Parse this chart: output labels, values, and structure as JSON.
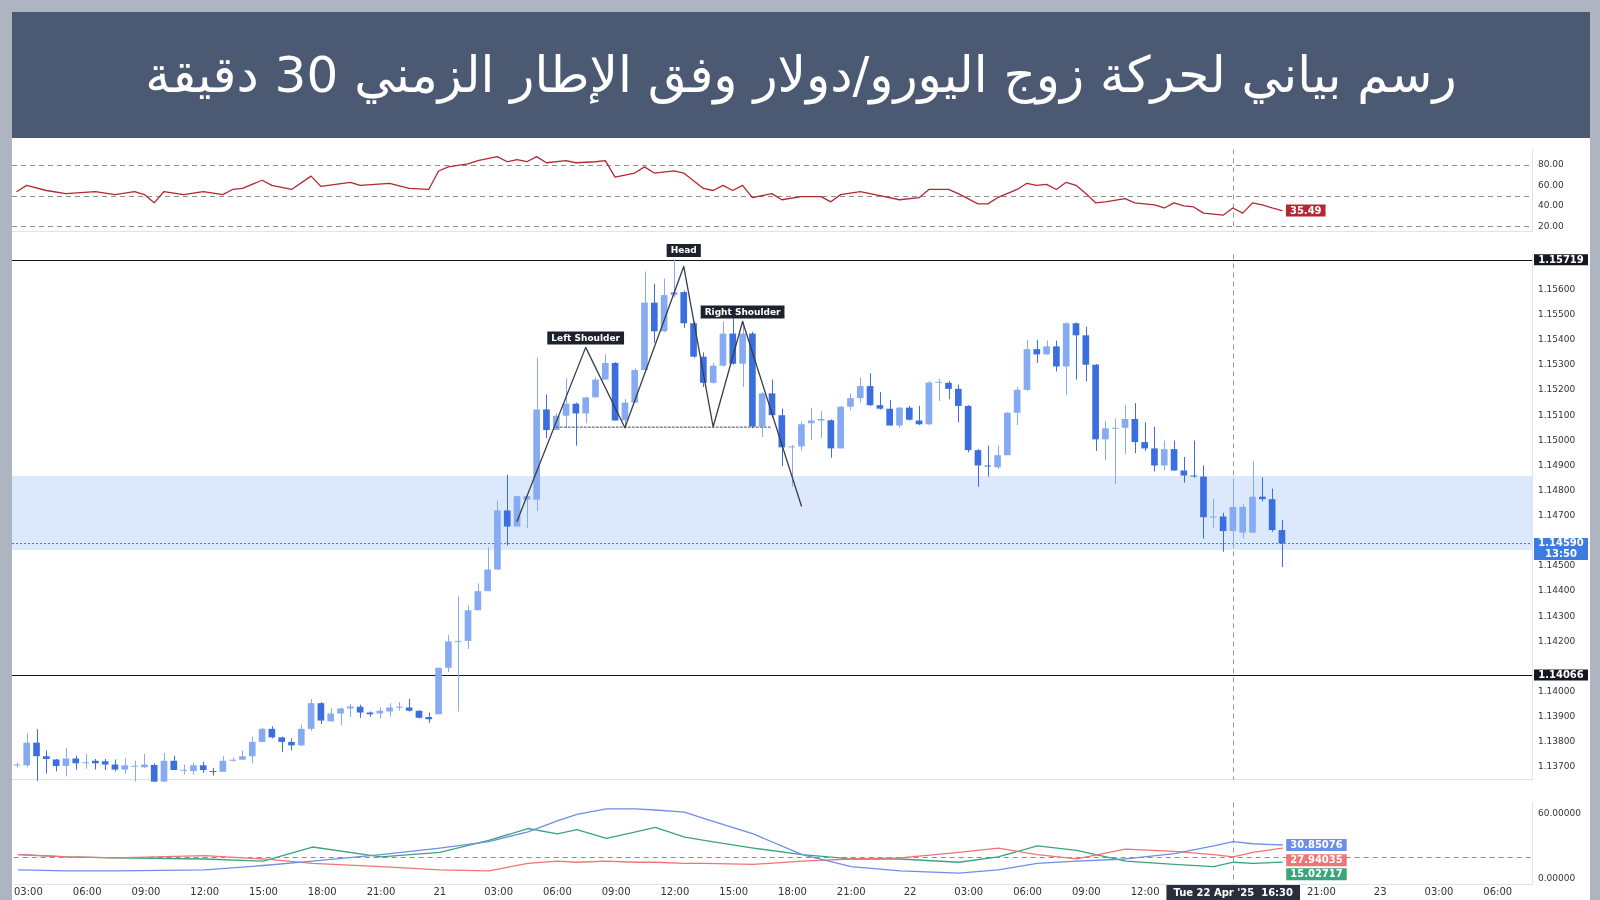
{
  "chart_data": [
    {
      "type": "line",
      "title": "رسم بياني لحركة زوج اليورو/دولار وفق الإطار الزمني 30 دقيقة",
      "color": "#b22833",
      "x": [
        "2025-04-20T02:30",
        "2025-04-20T03:00",
        "2025-04-20T04:00",
        "2025-04-20T05:00",
        "2025-04-20T06:30",
        "2025-04-20T07:30",
        "2025-04-20T08:30",
        "2025-04-20T09:00",
        "2025-04-20T09:30",
        "2025-04-20T10:00",
        "2025-04-20T11:00",
        "2025-04-20T12:00",
        "2025-04-20T13:00",
        "2025-04-20T13:30",
        "2025-04-20T14:00",
        "2025-04-20T15:00",
        "2025-04-20T15:30",
        "2025-04-20T16:30",
        "2025-04-20T17:30",
        "2025-04-20T18:00",
        "2025-04-20T19:30",
        "2025-04-20T20:00",
        "2025-04-20T21:30",
        "2025-04-20T22:30",
        "2025-04-20T23:30",
        "2025-04-21T00:00",
        "2025-04-21T00:30",
        "2025-04-21T01:30",
        "2025-04-21T02:00",
        "2025-04-21T03:00",
        "2025-04-21T03:30",
        "2025-04-21T04:00",
        "2025-04-21T04:30",
        "2025-04-21T05:00",
        "2025-04-21T05:30",
        "2025-04-21T06:30",
        "2025-04-21T07:00",
        "2025-04-21T08:00",
        "2025-04-21T08:30",
        "2025-04-21T09:00",
        "2025-04-21T10:00",
        "2025-04-21T10:30",
        "2025-04-21T11:00",
        "2025-04-21T12:00",
        "2025-04-21T12:30",
        "2025-04-21T13:30",
        "2025-04-21T14:00",
        "2025-04-21T14:30",
        "2025-04-21T15:00",
        "2025-04-21T15:30",
        "2025-04-21T16:00",
        "2025-04-21T17:00",
        "2025-04-21T17:30",
        "2025-04-21T18:30",
        "2025-04-21T19:30",
        "2025-04-21T20:00",
        "2025-04-21T20:30",
        "2025-04-21T21:30",
        "2025-04-21T22:30",
        "2025-04-21T23:30",
        "2025-04-22T00:30",
        "2025-04-22T01:00",
        "2025-04-22T02:00",
        "2025-04-22T02:30",
        "2025-04-22T03:30",
        "2025-04-22T04:00",
        "2025-04-22T04:30",
        "2025-04-22T05:30",
        "2025-04-22T06:00",
        "2025-04-22T06:30",
        "2025-04-22T07:00",
        "2025-04-22T07:30",
        "2025-04-22T08:00",
        "2025-04-22T08:30",
        "2025-04-22T09:00",
        "2025-04-22T09:30",
        "2025-04-22T10:00",
        "2025-04-22T11:00",
        "2025-04-22T11:30",
        "2025-04-22T12:30",
        "2025-04-22T13:00",
        "2025-04-22T13:30",
        "2025-04-22T14:00",
        "2025-04-22T14:30",
        "2025-04-22T15:00",
        "2025-04-22T16:00",
        "2025-04-22T16:30",
        "2025-04-22T17:00",
        "2025-04-22T17:30",
        "2025-04-22T18:00",
        "2025-04-22T18:30",
        "2025-04-22T19:00"
      ],
      "values": [
        54,
        60,
        55,
        52,
        54,
        51,
        54,
        51,
        43,
        54,
        51,
        54,
        51,
        56,
        57,
        65,
        60,
        56,
        69,
        59,
        63,
        60,
        62,
        57,
        56,
        74,
        78,
        81,
        84,
        88,
        83,
        85,
        83,
        88,
        82,
        84,
        82,
        83,
        84,
        68,
        72,
        78,
        72,
        74,
        72,
        57,
        55,
        60,
        55,
        60,
        48,
        52,
        46,
        49,
        49,
        44,
        51,
        54,
        50,
        46,
        48,
        56,
        56,
        52,
        42,
        42,
        48,
        56,
        62,
        60,
        61,
        56,
        63,
        60,
        52,
        43,
        44,
        47,
        43,
        41,
        38,
        43,
        40,
        39,
        33,
        31,
        38,
        33,
        43,
        41,
        38,
        35.49
      ],
      "value_labels": [
        null,
        null,
        null,
        null,
        null,
        null,
        null,
        null,
        null,
        null,
        null,
        null,
        null,
        null,
        null,
        null,
        null,
        null,
        null,
        null,
        null,
        null,
        null,
        null,
        null,
        null,
        null,
        null,
        null,
        null,
        null,
        null,
        null,
        null,
        null,
        null,
        null,
        null,
        null,
        null,
        null,
        null,
        null,
        null,
        null,
        null,
        null,
        null,
        null,
        null,
        null,
        null,
        null,
        null,
        null,
        null,
        null,
        null,
        null,
        null,
        null,
        null,
        null,
        null,
        null,
        null,
        null,
        null,
        null,
        null,
        null,
        null,
        null,
        null,
        null,
        null,
        null,
        null,
        null,
        null,
        null,
        null,
        null,
        null,
        null,
        null,
        null,
        null,
        null,
        null,
        null,
        "35.49"
      ],
      "xlim": [
        "2025-04-20T02:15",
        "2025-04-23T07:45"
      ],
      "ylim": [
        15,
        95
      ],
      "yticks": [
        {
          "value": 20,
          "label": "20.00"
        },
        {
          "value": 40,
          "label": "40.00"
        },
        {
          "value": 60,
          "label": "60.00"
        },
        {
          "value": 80,
          "label": "80.00"
        }
      ],
      "tick_labels": "y",
      "ref_lines": [
        {
          "axis": "y",
          "value": 80,
          "color": "#8a8d96",
          "line_style": "dashed"
        },
        {
          "axis": "y",
          "value": 50,
          "color": "#8a8d96",
          "line_style": "dashed"
        },
        {
          "axis": "y",
          "value": 20,
          "color": "#8a8d96",
          "line_style": "dashed"
        },
        {
          "axis": "x",
          "value": "2025-04-22T16:30",
          "color": "#9598a1",
          "line_style": "dashed"
        }
      ]
    },
    {
      "type": "candlestick",
      "x": [
        "2025-04-20T02:30",
        "2025-04-20T03:00",
        "2025-04-20T03:30",
        "2025-04-20T04:00",
        "2025-04-20T04:30",
        "2025-04-20T05:00",
        "2025-04-20T05:30",
        "2025-04-20T06:00",
        "2025-04-20T06:30",
        "2025-04-20T07:00",
        "2025-04-20T07:30",
        "2025-04-20T08:00",
        "2025-04-20T08:30",
        "2025-04-20T09:00",
        "2025-04-20T09:30",
        "2025-04-20T10:00",
        "2025-04-20T10:30",
        "2025-04-20T11:00",
        "2025-04-20T11:30",
        "2025-04-20T12:00",
        "2025-04-20T12:30",
        "2025-04-20T13:00",
        "2025-04-20T13:30",
        "2025-04-20T14:00",
        "2025-04-20T14:30",
        "2025-04-20T15:00",
        "2025-04-20T15:30",
        "2025-04-20T16:00",
        "2025-04-20T16:30",
        "2025-04-20T17:00",
        "2025-04-20T17:30",
        "2025-04-20T18:00",
        "2025-04-20T18:30",
        "2025-04-20T19:00",
        "2025-04-20T19:30",
        "2025-04-20T20:00",
        "2025-04-20T20:30",
        "2025-04-20T21:00",
        "2025-04-20T21:30",
        "2025-04-20T22:00",
        "2025-04-20T22:30",
        "2025-04-20T23:00",
        "2025-04-20T23:30",
        "2025-04-21T00:00",
        "2025-04-21T00:30",
        "2025-04-21T01:00",
        "2025-04-21T01:30",
        "2025-04-21T02:00",
        "2025-04-21T02:30",
        "2025-04-21T03:00",
        "2025-04-21T03:30",
        "2025-04-21T04:00",
        "2025-04-21T04:30",
        "2025-04-21T05:00",
        "2025-04-21T05:30",
        "2025-04-21T06:00",
        "2025-04-21T06:30",
        "2025-04-21T07:00",
        "2025-04-21T07:30",
        "2025-04-21T08:00",
        "2025-04-21T08:30",
        "2025-04-21T09:00",
        "2025-04-21T09:30",
        "2025-04-21T10:00",
        "2025-04-21T10:30",
        "2025-04-21T11:00",
        "2025-04-21T11:30",
        "2025-04-21T12:00",
        "2025-04-21T12:30",
        "2025-04-21T13:00",
        "2025-04-21T13:30",
        "2025-04-21T14:00",
        "2025-04-21T14:30",
        "2025-04-21T15:00",
        "2025-04-21T15:30",
        "2025-04-21T16:00",
        "2025-04-21T16:30",
        "2025-04-21T17:00",
        "2025-04-21T17:30",
        "2025-04-21T18:00",
        "2025-04-21T18:30",
        "2025-04-21T19:00",
        "2025-04-21T19:30",
        "2025-04-21T20:00",
        "2025-04-21T20:30",
        "2025-04-21T21:00",
        "2025-04-21T21:30",
        "2025-04-21T22:00",
        "2025-04-21T22:30",
        "2025-04-21T23:00",
        "2025-04-21T23:30",
        "2025-04-22T00:00",
        "2025-04-22T00:30",
        "2025-04-22T01:00",
        "2025-04-22T01:30",
        "2025-04-22T02:00",
        "2025-04-22T02:30",
        "2025-04-22T03:00",
        "2025-04-22T03:30",
        "2025-04-22T04:00",
        "2025-04-22T04:30",
        "2025-04-22T05:00",
        "2025-04-22T05:30",
        "2025-04-22T06:00",
        "2025-04-22T06:30",
        "2025-04-22T07:00",
        "2025-04-22T07:30",
        "2025-04-22T08:00",
        "2025-04-22T08:30",
        "2025-04-22T09:00",
        "2025-04-22T09:30",
        "2025-04-22T10:00",
        "2025-04-22T10:30",
        "2025-04-22T11:00",
        "2025-04-22T11:30",
        "2025-04-22T12:00",
        "2025-04-22T12:30",
        "2025-04-22T13:00",
        "2025-04-22T13:30",
        "2025-04-22T14:00",
        "2025-04-22T14:30",
        "2025-04-22T15:00",
        "2025-04-22T15:30",
        "2025-04-22T16:00",
        "2025-04-22T16:30",
        "2025-04-22T17:00",
        "2025-04-22T17:30",
        "2025-04-22T18:00",
        "2025-04-22T18:30",
        "2025-04-22T19:00"
      ],
      "ohlc": [
        [
          1.13708,
          1.13718,
          1.13698,
          1.1371
        ],
        [
          1.13707,
          1.13834,
          1.137,
          1.13797
        ],
        [
          1.13797,
          1.13851,
          1.13645,
          1.13743
        ],
        [
          1.13743,
          1.13766,
          1.13674,
          1.13732
        ],
        [
          1.1373,
          1.13732,
          1.13683,
          1.13704
        ],
        [
          1.13704,
          1.13777,
          1.13663,
          1.13734
        ],
        [
          1.13734,
          1.13745,
          1.1369,
          1.13715
        ],
        [
          1.13718,
          1.13752,
          1.13693,
          1.13719
        ],
        [
          1.13725,
          1.13732,
          1.1369,
          1.13715
        ],
        [
          1.13723,
          1.13732,
          1.13688,
          1.1371
        ],
        [
          1.1371,
          1.1373,
          1.13683,
          1.1369
        ],
        [
          1.1369,
          1.13735,
          1.13674,
          1.13707
        ],
        [
          1.13704,
          1.13725,
          1.13642,
          1.13705
        ],
        [
          1.13699,
          1.13752,
          1.13696,
          1.1371
        ],
        [
          1.13708,
          1.13714,
          1.13642,
          1.13642
        ],
        [
          1.13642,
          1.13756,
          1.13642,
          1.13725
        ],
        [
          1.13725,
          1.13745,
          1.13688,
          1.13688
        ],
        [
          1.13688,
          1.1371,
          1.1367,
          1.13689
        ],
        [
          1.13684,
          1.13718,
          1.1367,
          1.13707
        ],
        [
          1.13707,
          1.13721,
          1.13677,
          1.13688
        ],
        [
          1.13684,
          1.13697,
          1.13666,
          1.13683
        ],
        [
          1.13681,
          1.13743,
          1.13681,
          1.13725
        ],
        [
          1.13725,
          1.13738,
          1.13722,
          1.13729
        ],
        [
          1.13729,
          1.13766,
          1.13729,
          1.13743
        ],
        [
          1.13743,
          1.13821,
          1.13715,
          1.138
        ],
        [
          1.138,
          1.13855,
          1.138,
          1.13852
        ],
        [
          1.13852,
          1.13862,
          1.13814,
          1.13818
        ],
        [
          1.13818,
          1.13821,
          1.13759,
          1.138
        ],
        [
          1.138,
          1.13814,
          1.13766,
          1.13786
        ],
        [
          1.13786,
          1.13869,
          1.13783,
          1.13852
        ],
        [
          1.13852,
          1.13971,
          1.13844,
          1.13954
        ],
        [
          1.13954,
          1.13958,
          1.13871,
          1.13885
        ],
        [
          1.13882,
          1.13933,
          1.1388,
          1.13913
        ],
        [
          1.13913,
          1.13937,
          1.13866,
          1.13933
        ],
        [
          1.13933,
          1.13951,
          1.13899,
          1.13941
        ],
        [
          1.1394,
          1.13948,
          1.13896,
          1.13917
        ],
        [
          1.13917,
          1.13921,
          1.139,
          1.1391
        ],
        [
          1.13913,
          1.13937,
          1.13893,
          1.13924
        ],
        [
          1.13921,
          1.13954,
          1.139,
          1.13937
        ],
        [
          1.13938,
          1.13958,
          1.13924,
          1.1394
        ],
        [
          1.13937,
          1.13971,
          1.13921,
          1.13924
        ],
        [
          1.13924,
          1.13926,
          1.13893,
          1.13896
        ],
        [
          1.13899,
          1.13917,
          1.13875,
          1.1389
        ],
        [
          1.1391,
          1.14095,
          1.1391,
          1.14095
        ],
        [
          1.14095,
          1.14225,
          1.14077,
          1.142
        ],
        [
          1.142,
          1.14379,
          1.13921,
          1.14202
        ],
        [
          1.14202,
          1.14342,
          1.1417,
          1.14324
        ],
        [
          1.14324,
          1.14431,
          1.14324,
          1.144
        ],
        [
          1.144,
          1.14575,
          1.144,
          1.14486
        ],
        [
          1.14486,
          1.1476,
          1.14486,
          1.14721
        ],
        [
          1.14721,
          1.14863,
          1.14582,
          1.14657
        ],
        [
          1.14657,
          1.1478,
          1.14657,
          1.14778
        ],
        [
          1.14764,
          1.14784,
          1.1465,
          1.14778
        ],
        [
          1.14764,
          1.15329,
          1.14719,
          1.15123
        ],
        [
          1.15123,
          1.15182,
          1.15009,
          1.15041
        ],
        [
          1.15041,
          1.15109,
          1.15041,
          1.15098
        ],
        [
          1.15098,
          1.15246,
          1.15048,
          1.15146
        ],
        [
          1.15146,
          1.1515,
          1.14979,
          1.15107
        ],
        [
          1.15107,
          1.15174,
          1.15068,
          1.15171
        ],
        [
          1.15171,
          1.1525,
          1.15171,
          1.15242
        ],
        [
          1.15242,
          1.15342,
          1.15242,
          1.15308
        ],
        [
          1.15308,
          1.15311,
          1.15079,
          1.15079
        ],
        [
          1.15079,
          1.15164,
          1.15061,
          1.1515
        ],
        [
          1.1515,
          1.15287,
          1.1515,
          1.1528
        ],
        [
          1.1528,
          1.15672,
          1.1528,
          1.15548
        ],
        [
          1.15548,
          1.15623,
          1.15388,
          1.15434
        ],
        [
          1.15434,
          1.15644,
          1.15431,
          1.15578
        ],
        [
          1.15578,
          1.15719,
          1.15569,
          1.1559
        ],
        [
          1.1559,
          1.15596,
          1.15448,
          1.15466
        ],
        [
          1.15466,
          1.15473,
          1.15329,
          1.15333
        ],
        [
          1.15333,
          1.1535,
          1.15212,
          1.15229
        ],
        [
          1.15229,
          1.15308,
          1.15226,
          1.15297
        ],
        [
          1.15297,
          1.15473,
          1.15294,
          1.15425
        ],
        [
          1.15425,
          1.15486,
          1.15301,
          1.15305
        ],
        [
          1.15305,
          1.15473,
          1.15212,
          1.15425
        ],
        [
          1.15425,
          1.15432,
          1.15048,
          1.15055
        ],
        [
          1.15055,
          1.15192,
          1.15013,
          1.15187
        ],
        [
          1.15187,
          1.15242,
          1.15089,
          1.151
        ],
        [
          1.151,
          1.15127,
          1.14897,
          1.14972
        ],
        [
          1.14972,
          1.14982,
          1.14815,
          1.14976
        ],
        [
          1.14976,
          1.15075,
          1.14958,
          1.15064
        ],
        [
          1.15068,
          1.1513,
          1.15,
          1.15079
        ],
        [
          1.15079,
          1.15116,
          1.15009,
          1.15085
        ],
        [
          1.1508,
          1.15083,
          1.14931,
          1.14968
        ],
        [
          1.14968,
          1.15137,
          1.14968,
          1.15134
        ],
        [
          1.15134,
          1.15187,
          1.15119,
          1.15168
        ],
        [
          1.15168,
          1.1525,
          1.1515,
          1.15216
        ],
        [
          1.15216,
          1.15267,
          1.15137,
          1.1514
        ],
        [
          1.1514,
          1.15192,
          1.15122,
          1.15126
        ],
        [
          1.15126,
          1.1516,
          1.15059,
          1.15059
        ],
        [
          1.15059,
          1.15133,
          1.1505,
          1.1513
        ],
        [
          1.1513,
          1.15137,
          1.15079,
          1.15082
        ],
        [
          1.15079,
          1.15137,
          1.15061,
          1.15064
        ],
        [
          1.15064,
          1.15236,
          1.15061,
          1.1523
        ],
        [
          1.1523,
          1.15246,
          1.15157,
          1.15233
        ],
        [
          1.15229,
          1.15236,
          1.15164,
          1.15205
        ],
        [
          1.15205,
          1.15222,
          1.15071,
          1.15137
        ],
        [
          1.15137,
          1.1514,
          1.14952,
          1.14961
        ],
        [
          1.14961,
          1.14965,
          1.14815,
          1.149
        ],
        [
          1.149,
          1.14979,
          1.14856,
          1.14897
        ],
        [
          1.14893,
          1.14979,
          1.14886,
          1.14941
        ],
        [
          1.14941,
          1.15112,
          1.14941,
          1.1511
        ],
        [
          1.1511,
          1.15212,
          1.15061,
          1.15201
        ],
        [
          1.15201,
          1.154,
          1.15196,
          1.15363
        ],
        [
          1.15363,
          1.154,
          1.15308,
          1.15342
        ],
        [
          1.15342,
          1.15397,
          1.15342,
          1.15374
        ],
        [
          1.15374,
          1.15397,
          1.15274,
          1.15294
        ],
        [
          1.15294,
          1.15469,
          1.15182,
          1.15466
        ],
        [
          1.15466,
          1.15469,
          1.15242,
          1.15418
        ],
        [
          1.15418,
          1.15452,
          1.15235,
          1.15301
        ],
        [
          1.15301,
          1.15304,
          1.14958,
          1.15004
        ],
        [
          1.15004,
          1.15078,
          1.14922,
          1.15048
        ],
        [
          1.15048,
          1.15086,
          1.14826,
          1.1505
        ],
        [
          1.1505,
          1.15141,
          1.14945,
          1.15085
        ],
        [
          1.15085,
          1.15148,
          1.14949,
          1.14993
        ],
        [
          1.14993,
          1.15072,
          1.14958,
          1.14968
        ],
        [
          1.14968,
          1.15054,
          1.14876,
          1.149
        ],
        [
          1.149,
          1.14999,
          1.1488,
          1.14965
        ],
        [
          1.14965,
          1.14999,
          1.1488,
          1.1488
        ],
        [
          1.1488,
          1.14934,
          1.14832,
          1.1486
        ],
        [
          1.1486,
          1.14999,
          1.14851,
          1.14858
        ],
        [
          1.14856,
          1.149,
          1.14609,
          1.14694
        ],
        [
          1.14694,
          1.14766,
          1.14653,
          1.14697
        ],
        [
          1.14697,
          1.14712,
          1.14557,
          1.14639
        ],
        [
          1.14639,
          1.14849,
          1.14571,
          1.14735
        ],
        [
          1.14633,
          1.14746,
          1.1461,
          1.14735
        ],
        [
          1.14633,
          1.14917,
          1.14633,
          1.14776
        ],
        [
          1.14776,
          1.14853,
          1.14757,
          1.14766
        ],
        [
          1.14766,
          1.14808,
          1.14636,
          1.14643
        ],
        [
          1.14643,
          1.14684,
          1.14496,
          1.1459
        ]
      ],
      "colors": [
        "#86abf2",
        "#86abf2",
        "#3b6fe0",
        "#3b6fe0",
        "#3b6fe0",
        "#86abf2",
        "#3b6fe0",
        "#86abf2",
        "#3b6fe0",
        "#3b6fe0",
        "#3b6fe0",
        "#86abf2",
        "#86abf2",
        "#86abf2",
        "#3b6fe0",
        "#86abf2",
        "#3b6fe0",
        "#86abf2",
        "#86abf2",
        "#3b6fe0",
        "#3b6fe0",
        "#86abf2",
        "#86abf2",
        "#86abf2",
        "#86abf2",
        "#86abf2",
        "#3b6fe0",
        "#3b6fe0",
        "#3b6fe0",
        "#86abf2",
        "#86abf2",
        "#3b6fe0",
        "#86abf2",
        "#86abf2",
        "#86abf2",
        "#3b6fe0",
        "#3b6fe0",
        "#86abf2",
        "#86abf2",
        "#86abf2",
        "#3b6fe0",
        "#3b6fe0",
        "#3b6fe0",
        "#86abf2",
        "#86abf2",
        "#86abf2",
        "#86abf2",
        "#86abf2",
        "#86abf2",
        "#86abf2",
        "#3b6fe0",
        "#86abf2",
        "#86abf2",
        "#86abf2",
        "#3b6fe0",
        "#86abf2",
        "#86abf2",
        "#3b6fe0",
        "#86abf2",
        "#86abf2",
        "#86abf2",
        "#3b6fe0",
        "#86abf2",
        "#86abf2",
        "#86abf2",
        "#3b6fe0",
        "#86abf2",
        "#86abf2",
        "#3b6fe0",
        "#3b6fe0",
        "#3b6fe0",
        "#86abf2",
        "#86abf2",
        "#3b6fe0",
        "#86abf2",
        "#3b6fe0",
        "#86abf2",
        "#3b6fe0",
        "#3b6fe0",
        "#86abf2",
        "#86abf2",
        "#86abf2",
        "#86abf2",
        "#3b6fe0",
        "#86abf2",
        "#86abf2",
        "#86abf2",
        "#3b6fe0",
        "#3b6fe0",
        "#3b6fe0",
        "#86abf2",
        "#3b6fe0",
        "#3b6fe0",
        "#86abf2",
        "#86abf2",
        "#3b6fe0",
        "#3b6fe0",
        "#3b6fe0",
        "#3b6fe0",
        "#3b6fe0",
        "#86abf2",
        "#86abf2",
        "#86abf2",
        "#86abf2",
        "#3b6fe0",
        "#86abf2",
        "#3b6fe0",
        "#86abf2",
        "#3b6fe0",
        "#3b6fe0",
        "#3b6fe0",
        "#86abf2",
        "#86abf2",
        "#86abf2",
        "#3b6fe0",
        "#3b6fe0",
        "#3b6fe0",
        "#86abf2",
        "#3b6fe0",
        "#3b6fe0",
        "#3b6fe0",
        "#3b6fe0",
        "#86abf2",
        "#3b6fe0",
        "#86abf2",
        "#86abf2",
        "#86abf2",
        "#3b6fe0",
        "#3b6fe0",
        "#3b6fe0"
      ],
      "series": [
        {
          "type": "line",
          "color": "#3a3d45",
          "x": [
            "2025-04-21T04:00",
            "2025-04-21T07:30",
            "2025-04-21T09:30",
            "2025-04-21T12:30",
            "2025-04-21T14:00",
            "2025-04-21T15:30",
            "2025-04-21T18:30"
          ],
          "values": [
            1.14678,
            1.1537,
            1.1505,
            1.15692,
            1.15054,
            1.15473,
            1.14739
          ]
        },
        {
          "type": "line",
          "color": "#6b6f78",
          "line_style": "dotted",
          "x": [
            "2025-04-21T06:00",
            "2025-04-21T17:00"
          ],
          "values": [
            1.15053,
            1.15053
          ]
        }
      ],
      "xlim": [
        "2025-04-20T02:15",
        "2025-04-23T07:45"
      ],
      "ylim": [
        1.1365,
        1.1574
      ],
      "yticks": [
        {
          "value": 1.137,
          "label": "1.13700"
        },
        {
          "value": 1.138,
          "label": "1.13800"
        },
        {
          "value": 1.139,
          "label": "1.13900"
        },
        {
          "value": 1.14,
          "label": "1.14000"
        },
        {
          "value": 1.142,
          "label": "1.14200"
        },
        {
          "value": 1.143,
          "label": "1.14300"
        },
        {
          "value": 1.144,
          "label": "1.14400"
        },
        {
          "value": 1.145,
          "label": "1.14500"
        },
        {
          "value": 1.147,
          "label": "1.14700"
        },
        {
          "value": 1.148,
          "label": "1.14800"
        },
        {
          "value": 1.149,
          "label": "1.14900"
        },
        {
          "value": 1.15,
          "label": "1.15000"
        },
        {
          "value": 1.151,
          "label": "1.15100"
        },
        {
          "value": 1.152,
          "label": "1.15200"
        },
        {
          "value": 1.153,
          "label": "1.15300"
        },
        {
          "value": 1.154,
          "label": "1.15400"
        },
        {
          "value": 1.155,
          "label": "1.15500"
        },
        {
          "value": 1.156,
          "label": "1.15600"
        }
      ],
      "tick_labels": "y",
      "bands": [
        {
          "axis": "y",
          "from": 1.14564,
          "to": 1.14858,
          "color": "#dce8fb"
        }
      ],
      "ref_lines": [
        {
          "axis": "y",
          "value": 1.15719,
          "label": "1.15719",
          "color": "#131722"
        },
        {
          "axis": "y",
          "value": 1.14066,
          "label": "1.14066",
          "color": "#131722"
        },
        {
          "axis": "y",
          "value": 1.1459,
          "label": "1.14590\n13:50",
          "color": "#3d7be0",
          "line_style": "dotted"
        },
        {
          "axis": "x",
          "value": "2025-04-22T16:30",
          "color": "#9598a1",
          "line_style": "dashed"
        }
      ],
      "annotations": [
        {
          "text": "Left Shoulder",
          "x": "2025-04-21T07:30",
          "y": 1.1537
        },
        {
          "text": "Head",
          "x": "2025-04-21T12:30",
          "y": 1.15719
        },
        {
          "text": "Right Shoulder",
          "x": "2025-04-21T15:30",
          "y": 1.15473
        }
      ]
    },
    {
      "type": "line",
      "x": [
        "2025-04-20T02:30",
        "2025-04-20T05:00",
        "2025-04-20T07:30",
        "2025-04-20T12:00",
        "2025-04-20T15:00",
        "2025-04-20T17:30",
        "2025-04-20T21:00",
        "2025-04-21T00:00",
        "2025-04-21T02:30",
        "2025-04-21T04:30",
        "2025-04-21T06:00",
        "2025-04-21T07:00",
        "2025-04-21T08:30",
        "2025-04-21T10:00",
        "2025-04-21T11:00",
        "2025-04-21T12:30",
        "2025-04-21T13:30",
        "2025-04-21T16:00",
        "2025-04-21T18:30",
        "2025-04-21T21:00",
        "2025-04-21T23:30",
        "2025-04-22T02:30",
        "2025-04-22T04:30",
        "2025-04-22T06:30",
        "2025-04-22T08:30",
        "2025-04-22T11:00",
        "2025-04-22T13:30",
        "2025-04-22T15:30",
        "2025-04-22T16:30",
        "2025-04-22T17:30",
        "2025-04-22T19:00"
      ],
      "series": [
        {
          "color": "#6f8fe6",
          "values": [
            8,
            7,
            7,
            8,
            12,
            16,
            22,
            28,
            34,
            43,
            53,
            59,
            64,
            64,
            63,
            61,
            55,
            41,
            22,
            11,
            7,
            5,
            8,
            14,
            16,
            18,
            23,
            30,
            34,
            32,
            30.85076
          ],
          "value_labels": [
            null,
            null,
            null,
            null,
            null,
            null,
            null,
            null,
            null,
            null,
            null,
            null,
            null,
            null,
            null,
            null,
            null,
            null,
            null,
            null,
            null,
            null,
            null,
            null,
            null,
            null,
            null,
            null,
            null,
            null,
            "30.85076"
          ]
        },
        {
          "color": "#f07474",
          "values": [
            22,
            20,
            19,
            21,
            18,
            14,
            11,
            8,
            7,
            14,
            16,
            15,
            16,
            15,
            15,
            14,
            14,
            13,
            16,
            18,
            19,
            24,
            28,
            22,
            18,
            27,
            25,
            22,
            20,
            24,
            27.94035
          ],
          "value_labels": [
            null,
            null,
            null,
            null,
            null,
            null,
            null,
            null,
            null,
            null,
            null,
            null,
            null,
            null,
            null,
            null,
            null,
            null,
            null,
            null,
            null,
            null,
            null,
            null,
            null,
            null,
            null,
            null,
            null,
            null,
            "27.94035"
          ]
        },
        {
          "color": "#3aa57a",
          "values": [
            22,
            20,
            19,
            18,
            16,
            29,
            20,
            24,
            35,
            46,
            41,
            45,
            37,
            43,
            47,
            38,
            35,
            28,
            22,
            18,
            18,
            15,
            20,
            30,
            26,
            16,
            13,
            11,
            15,
            14,
            15.02717
          ],
          "value_labels": [
            null,
            null,
            null,
            null,
            null,
            null,
            null,
            null,
            null,
            null,
            null,
            null,
            null,
            null,
            null,
            null,
            null,
            null,
            null,
            null,
            null,
            null,
            null,
            null,
            null,
            null,
            null,
            null,
            null,
            null,
            "15.02717"
          ]
        }
      ],
      "xlim": [
        "2025-04-20T02:15",
        "2025-04-23T07:45"
      ],
      "ylim": [
        -5,
        70
      ],
      "xticks": [
        {
          "value": "2025-04-20T03:00",
          "label": "03:00"
        },
        {
          "value": "2025-04-20T06:00",
          "label": "06:00"
        },
        {
          "value": "2025-04-20T09:00",
          "label": "09:00"
        },
        {
          "value": "2025-04-20T12:00",
          "label": "12:00"
        },
        {
          "value": "2025-04-20T15:00",
          "label": "15:00"
        },
        {
          "value": "2025-04-20T18:00",
          "label": "18:00"
        },
        {
          "value": "2025-04-20T21:00",
          "label": "21:00"
        },
        {
          "value": "2025-04-21T00:00",
          "label": "21"
        },
        {
          "value": "2025-04-21T03:00",
          "label": "03:00"
        },
        {
          "value": "2025-04-21T06:00",
          "label": "06:00"
        },
        {
          "value": "2025-04-21T09:00",
          "label": "09:00"
        },
        {
          "value": "2025-04-21T12:00",
          "label": "12:00"
        },
        {
          "value": "2025-04-21T15:00",
          "label": "15:00"
        },
        {
          "value": "2025-04-21T18:00",
          "label": "18:00"
        },
        {
          "value": "2025-04-21T21:00",
          "label": "21:00"
        },
        {
          "value": "2025-04-22T00:00",
          "label": "22"
        },
        {
          "value": "2025-04-22T03:00",
          "label": "03:00"
        },
        {
          "value": "2025-04-22T06:00",
          "label": "06:00"
        },
        {
          "value": "2025-04-22T09:00",
          "label": "09:00"
        },
        {
          "value": "2025-04-22T12:00",
          "label": "12:00"
        },
        {
          "value": "2025-04-22T21:00",
          "label": "21:00"
        },
        {
          "value": "2025-04-23T00:00",
          "label": "23"
        },
        {
          "value": "2025-04-23T03:00",
          "label": "03:00"
        },
        {
          "value": "2025-04-23T06:00",
          "label": "06:00"
        }
      ],
      "yticks": [
        {
          "value": 0,
          "label": "0.00000"
        },
        {
          "value": 60,
          "label": "60.00000"
        }
      ],
      "ref_lines": [
        {
          "axis": "y",
          "value": 20,
          "color": "#8a8d96",
          "line_style": "dashed"
        },
        {
          "axis": "x",
          "value": "2025-04-22T16:30",
          "label": "Tue 22 Apr '25  16:30",
          "color": "#9598a1",
          "line_style": "dashed"
        }
      ]
    }
  ]
}
